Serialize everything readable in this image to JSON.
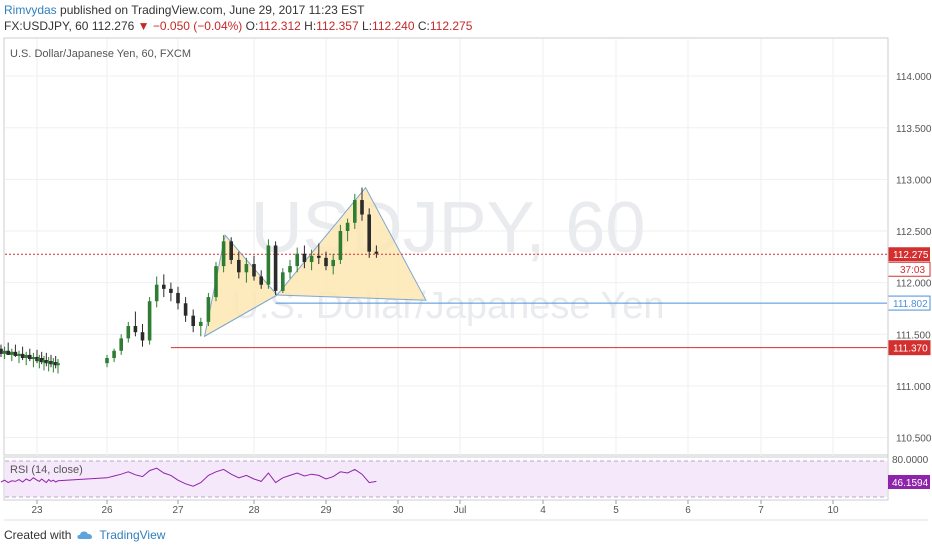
{
  "header": {
    "author": "Rimvydas",
    "published": "published on TradingView.com, June 29, 2017 11:23 EST",
    "symbol": "FX:USDJPY, 60",
    "last": "112.276",
    "change": "−0.050 (−0.04%)",
    "open_label": "O:",
    "open": "112.312",
    "high_label": "H:",
    "high": "112.357",
    "low_label": "L:",
    "low": "112.240",
    "close_label": "C:",
    "close": "112.275"
  },
  "chart_data": {
    "type": "candlestick",
    "title": "U.S. Dollar/Japanese Yen, 60, FXCM",
    "watermark_symbol": "USDJPY, 60",
    "watermark_name": "U.S. Dollar/Japanese Yen",
    "y_ticks": [
      "114.000",
      "113.500",
      "113.000",
      "112.500",
      "112.000",
      "111.500",
      "111.000",
      "110.500"
    ],
    "ylim": [
      110.35,
      114.35
    ],
    "x_ticks": [
      {
        "label": "23",
        "day": 23
      },
      {
        "label": "26",
        "day": 26
      },
      {
        "label": "27",
        "day": 27
      },
      {
        "label": "28",
        "day": 28
      },
      {
        "label": "29",
        "day": 29
      },
      {
        "label": "30",
        "day": 30
      },
      {
        "label": "Jul",
        "day": 31
      },
      {
        "label": "4",
        "day": 34
      },
      {
        "label": "5",
        "day": 35
      },
      {
        "label": "6",
        "day": 36
      },
      {
        "label": "7",
        "day": 37
      },
      {
        "label": "10",
        "day": 40
      }
    ],
    "current_price": {
      "value": 112.275,
      "label": "112.275",
      "countdown": "37:03",
      "color": "#d32f2f"
    },
    "horizontal_lines": [
      {
        "value": 111.802,
        "label": "111.802",
        "color": "#4a90d9"
      },
      {
        "value": 111.37,
        "label": "111.370",
        "color": "#d32f2f"
      }
    ],
    "pattern": {
      "fill": "#fde7b3",
      "points": [
        {
          "day": 27.35,
          "price": 111.48
        },
        {
          "day": 27.62,
          "price": 112.46
        },
        {
          "day": 28.32,
          "price": 111.88
        },
        {
          "day": 29.55,
          "price": 112.92
        },
        {
          "day": 30.45,
          "price": 111.83
        }
      ]
    },
    "candles": [
      [
        22.0,
        111.36,
        111.4,
        111.28,
        111.31
      ],
      [
        22.1,
        111.31,
        111.38,
        111.26,
        111.34
      ],
      [
        22.2,
        111.34,
        111.42,
        111.3,
        111.3
      ],
      [
        22.3,
        111.3,
        111.36,
        111.24,
        111.33
      ],
      [
        22.4,
        111.33,
        111.4,
        111.28,
        111.29
      ],
      [
        22.5,
        111.29,
        111.34,
        111.22,
        111.31
      ],
      [
        22.6,
        111.31,
        111.38,
        111.25,
        111.27
      ],
      [
        22.7,
        111.27,
        111.33,
        111.2,
        111.3
      ],
      [
        22.8,
        111.3,
        111.36,
        111.24,
        111.26
      ],
      [
        22.9,
        111.26,
        111.32,
        111.18,
        111.28
      ],
      [
        23.0,
        111.28,
        111.35,
        111.22,
        111.24
      ],
      [
        23.1,
        111.24,
        111.3,
        111.17,
        111.27
      ],
      [
        23.2,
        111.27,
        111.33,
        111.21,
        111.23
      ],
      [
        23.3,
        111.23,
        111.29,
        111.15,
        111.25
      ],
      [
        23.4,
        111.25,
        111.32,
        111.19,
        111.22
      ],
      [
        23.5,
        111.22,
        111.28,
        111.14,
        111.24
      ],
      [
        23.6,
        111.24,
        111.3,
        111.18,
        111.21
      ],
      [
        23.7,
        111.21,
        111.27,
        111.13,
        111.23
      ],
      [
        23.8,
        111.23,
        111.29,
        111.17,
        111.2
      ],
      [
        23.9,
        111.2,
        111.26,
        111.12,
        111.22
      ],
      [
        26.0,
        111.22,
        111.3,
        111.18,
        111.27
      ],
      [
        26.1,
        111.27,
        111.36,
        111.23,
        111.34
      ],
      [
        26.2,
        111.34,
        111.5,
        111.3,
        111.46
      ],
      [
        26.3,
        111.46,
        111.62,
        111.42,
        111.58
      ],
      [
        26.4,
        111.58,
        111.72,
        111.48,
        111.52
      ],
      [
        26.5,
        111.52,
        111.6,
        111.38,
        111.44
      ],
      [
        26.6,
        111.44,
        111.86,
        111.4,
        111.82
      ],
      [
        26.7,
        111.82,
        112.06,
        111.76,
        111.98
      ],
      [
        26.8,
        111.98,
        112.08,
        111.86,
        111.94
      ],
      [
        26.9,
        111.94,
        112.0,
        111.82,
        111.9
      ],
      [
        27.0,
        111.9,
        111.96,
        111.74,
        111.8
      ],
      [
        27.1,
        111.8,
        111.86,
        111.62,
        111.68
      ],
      [
        27.2,
        111.68,
        111.74,
        111.52,
        111.58
      ],
      [
        27.3,
        111.58,
        111.66,
        111.48,
        111.62
      ],
      [
        27.4,
        111.62,
        111.9,
        111.58,
        111.86
      ],
      [
        27.5,
        111.86,
        112.2,
        111.82,
        112.16
      ],
      [
        27.6,
        112.16,
        112.46,
        112.1,
        112.4
      ],
      [
        27.7,
        112.4,
        112.44,
        112.18,
        112.22
      ],
      [
        27.8,
        112.22,
        112.3,
        112.04,
        112.1
      ],
      [
        27.9,
        112.1,
        112.24,
        112.0,
        112.18
      ],
      [
        28.0,
        112.18,
        112.26,
        112.02,
        112.06
      ],
      [
        28.1,
        112.06,
        112.12,
        111.94,
        111.98
      ],
      [
        28.2,
        111.98,
        112.42,
        111.94,
        112.36
      ],
      [
        28.3,
        112.36,
        112.4,
        111.88,
        111.92
      ],
      [
        28.4,
        111.92,
        112.14,
        111.9,
        112.1
      ],
      [
        28.5,
        112.1,
        112.22,
        112.04,
        112.16
      ],
      [
        28.6,
        112.16,
        112.34,
        112.1,
        112.28
      ],
      [
        28.7,
        112.28,
        112.36,
        112.14,
        112.2
      ],
      [
        28.8,
        112.2,
        112.32,
        112.12,
        112.26
      ],
      [
        28.9,
        112.26,
        112.38,
        112.18,
        112.24
      ],
      [
        29.0,
        112.24,
        112.3,
        112.12,
        112.16
      ],
      [
        29.1,
        112.16,
        112.28,
        112.08,
        112.22
      ],
      [
        29.2,
        112.22,
        112.56,
        112.18,
        112.5
      ],
      [
        29.3,
        112.5,
        112.62,
        112.4,
        112.58
      ],
      [
        29.4,
        112.58,
        112.86,
        112.52,
        112.8
      ],
      [
        29.5,
        112.8,
        112.92,
        112.6,
        112.66
      ],
      [
        29.6,
        112.66,
        112.72,
        112.24,
        112.3
      ],
      [
        29.7,
        112.3,
        112.36,
        112.24,
        112.28
      ]
    ],
    "rsi": {
      "label": "RSI (14, close)",
      "upper_tick": "80.0000",
      "value_label": "46.1594",
      "values": [
        45,
        48,
        44,
        47,
        46,
        49,
        45,
        50,
        47,
        52,
        48,
        46,
        50,
        47,
        44,
        49,
        46,
        48,
        45,
        47,
        52,
        55,
        58,
        62,
        57,
        54,
        64,
        68,
        60,
        56,
        48,
        42,
        38,
        44,
        56,
        62,
        66,
        58,
        52,
        56,
        50,
        46,
        60,
        44,
        52,
        56,
        60,
        55,
        58,
        56,
        50,
        54,
        62,
        60,
        66,
        58,
        44,
        46
      ],
      "ylim": [
        20,
        80
      ]
    }
  },
  "footer": {
    "created_with": "Created with",
    "brand": "TradingView"
  },
  "colors": {
    "up": "#2e7d32",
    "down": "#2b2b2b",
    "grid": "#eef0f2",
    "rsi_bg": "#f6e8fb",
    "rsi_line": "#8e24aa"
  }
}
